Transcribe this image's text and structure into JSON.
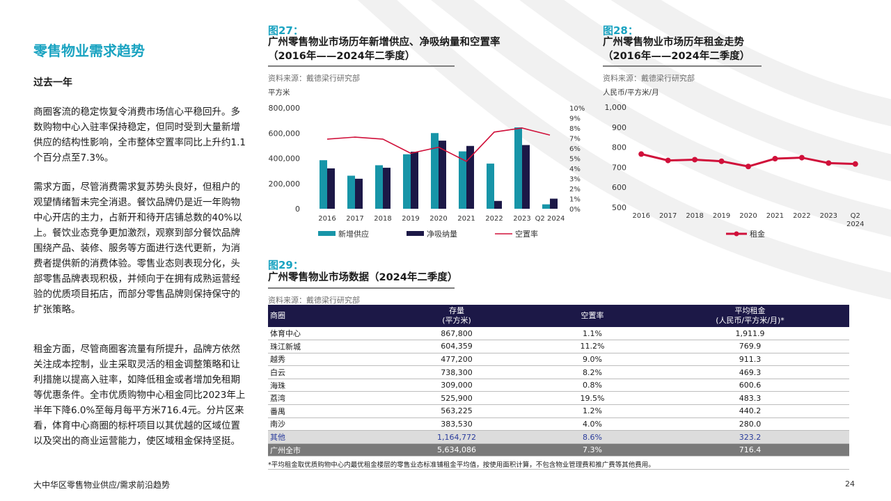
{
  "section_title": "零售物业需求趋势",
  "subtitle": "过去一年",
  "paragraphs": [
    "商圈客流的稳定恢复令消费市场信心平稳回升。多数购物中心入驻率保持稳定，但同时受到大量新增供应的结构性影响，全市整体空置率同比上升约1.1个百分点至7.3%。",
    "需求方面，尽管消费需求复苏势头良好，但租户的观望情绪暂未完全消退。餐饮品牌仍是近一年购物中心开店的主力，占新开和待开店铺总数的40%以上。餐饮业态竞争更加激烈，观察到部分餐饮品牌围绕产品、装修、服务等方面进行迭代更新，为消费者提供新的消费体验。零售业态则表现分化，头部零售品牌表现积极，并倾向于在拥有成熟运营经验的优质项目拓店，而部分零售品牌则保持保守的扩张策略。",
    "租金方面，尽管商圈客流量有所提升，品牌方依然关注成本控制，业主采取灵活的租金调整策略和让利措施以提高入驻率，如降低租金或者增加免租期等优惠条件。全市优质购物中心租金同比2023年上半年下降6.0%至每月每平方米716.4元。分片区来看，体育中心商圈的标杆项目以其优越的区域位置以及突出的商业运营能力，使区域租金保持坚挺。"
  ],
  "fig27": {
    "number": "图27：",
    "title_line1": "广州零售物业市场历年新增供应、净吸纳量和空置率",
    "title_line2": "（2016年——2024年二季度）",
    "source": "资料来源：戴德梁行研究部",
    "unit": "平方米"
  },
  "fig28": {
    "number": "图28：",
    "title_line1": "广州零售物业市场历年租金走势",
    "title_line2": "（2016年——2024年二季度）",
    "source": "资料来源：戴德梁行研究部",
    "unit": "人民币/平方米/月"
  },
  "fig29": {
    "number": "图29：",
    "title": "广州零售物业市场数据（2024年二季度）",
    "source": "资料来源：戴德梁行研究部",
    "headers": [
      "商圈",
      "存量\n(平方米)",
      "空置率",
      "平均租金\n(人民币/平方米/月)*"
    ],
    "rows": [
      [
        "体育中心",
        "867,800",
        "1.1%",
        "1,911.9"
      ],
      [
        "珠江新城",
        "604,359",
        "11.2%",
        "769.9"
      ],
      [
        "越秀",
        "477,200",
        "9.0%",
        "911.3"
      ],
      [
        "白云",
        "738,300",
        "8.2%",
        "469.3"
      ],
      [
        "海珠",
        "309,000",
        "0.8%",
        "600.6"
      ],
      [
        "荔湾",
        "525,900",
        "19.5%",
        "483.3"
      ],
      [
        "番禺",
        "563,225",
        "1.2%",
        "440.2"
      ],
      [
        "南沙",
        "383,530",
        "4.0%",
        "280.0"
      ],
      [
        "其他",
        "1,164,772",
        "8.6%",
        "323.2"
      ],
      [
        "广州全市",
        "5,634,086",
        "7.3%",
        "716.4"
      ]
    ],
    "footnote": "*平均租金取优质购物中心内最优租金楼层的零售业态标准铺租金平均值，按使用面积计算，不包含物业管理费和推广费等其他费用。"
  },
  "footer": {
    "left": "大中华区零售物业供应/需求前沿趋势",
    "page": "24"
  },
  "colors": {
    "accent": "#1aa3c1",
    "navy": "#1c1847",
    "teal": "#1795a8",
    "red": "#d0103a"
  },
  "chart_data": [
    {
      "type": "bar",
      "categories": [
        "2016",
        "2017",
        "2018",
        "2019",
        "2020",
        "2021",
        "2022",
        "2023",
        "Q2 2024"
      ],
      "series": [
        {
          "name": "新增供应",
          "kind": "bar",
          "color": "#1795a8",
          "values": [
            385000,
            262000,
            345000,
            432000,
            600000,
            455000,
            358000,
            645000,
            35000
          ]
        },
        {
          "name": "净吸纳量",
          "kind": "bar",
          "color": "#1c1847",
          "values": [
            320000,
            238000,
            325000,
            452000,
            540000,
            498000,
            62000,
            505000,
            80000
          ]
        },
        {
          "name": "空置率",
          "kind": "line",
          "axis": "right",
          "color": "#d0103a",
          "values": [
            6.9,
            7.1,
            6.9,
            5.5,
            6.1,
            4.7,
            7.6,
            8.0,
            7.3
          ]
        }
      ],
      "y_ticks": [
        "0",
        "200,000",
        "400,000",
        "600,000",
        "800,000"
      ],
      "y2_ticks": [
        "0%",
        "1%",
        "2%",
        "3%",
        "4%",
        "5%",
        "6%",
        "7%",
        "8%",
        "9%",
        "10%"
      ],
      "ylim": [
        0,
        800000
      ],
      "y2lim": [
        0,
        10
      ],
      "ylabel": "平方米",
      "legend_position": "bottom"
    },
    {
      "type": "line",
      "categories": [
        "2016",
        "2017",
        "2018",
        "2019",
        "2020",
        "2021",
        "2022",
        "2023",
        "Q2|2024"
      ],
      "series": [
        {
          "name": "租金",
          "color": "#d0103a",
          "values": [
            766,
            734,
            738,
            730,
            704,
            743,
            748,
            721,
            716.4
          ]
        }
      ],
      "y_ticks": [
        "500",
        "600",
        "700",
        "800",
        "900",
        "1,000"
      ],
      "ylim": [
        500,
        1000
      ],
      "ylabel": "人民币/平方米/月",
      "legend_position": "bottom"
    }
  ]
}
